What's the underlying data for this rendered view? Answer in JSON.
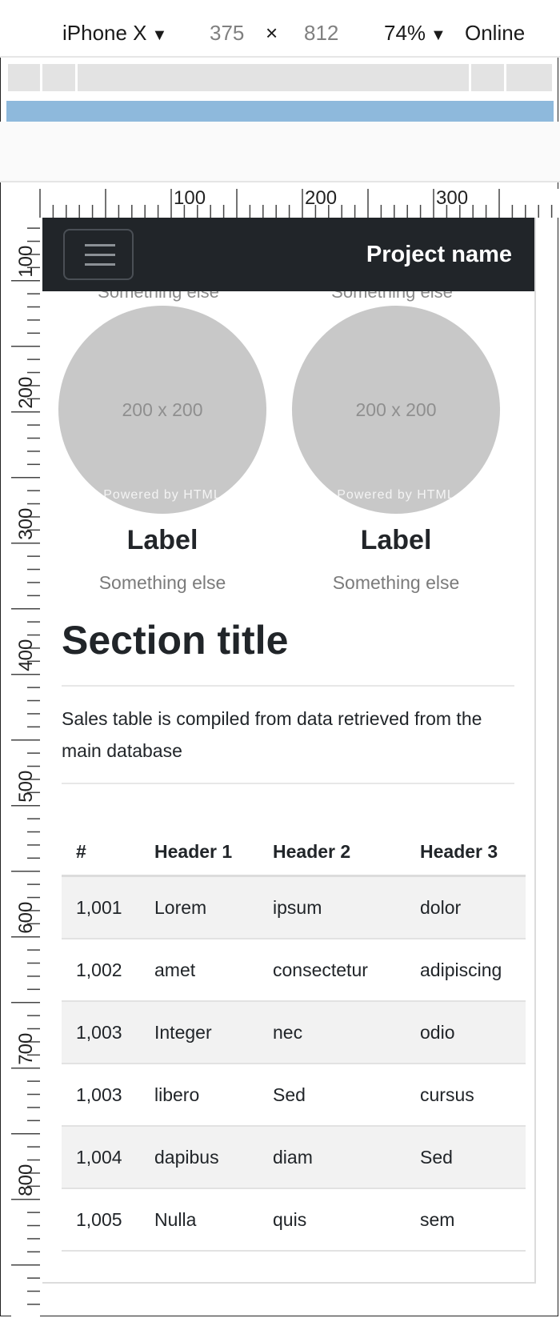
{
  "device_toolbar": {
    "device": "iPhone X",
    "width": "375",
    "separator": "×",
    "height": "812",
    "zoom": "74%",
    "throttling": "Online",
    "caret": "▼"
  },
  "ruler": {
    "horizontal_labels": [
      "100",
      "200",
      "300"
    ],
    "vertical_labels": [
      "100",
      "200",
      "300",
      "400",
      "500",
      "600",
      "700",
      "800"
    ]
  },
  "navbar": {
    "brand": "Project name",
    "toggler_icon": "hamburger-icon"
  },
  "thumbnails": [
    {
      "placeholder": "200 x 200",
      "watermark": "Powered by HTML",
      "label": "Label",
      "caption": "Something else",
      "clipped_caption": "Something else"
    },
    {
      "placeholder": "200 x 200",
      "watermark": "Powered by HTML",
      "label": "Label",
      "caption": "Something else",
      "clipped_caption": "Something else"
    }
  ],
  "section": {
    "title": "Section title",
    "lead": "Sales table is compiled from data retrieved from the main database"
  },
  "table": {
    "headers": [
      "#",
      "Header 1",
      "Header 2",
      "Header 3"
    ],
    "rows": [
      [
        "1,001",
        "Lorem",
        "ipsum",
        "dolor"
      ],
      [
        "1,002",
        "amet",
        "consectetur",
        "adipiscing"
      ],
      [
        "1,003",
        "Integer",
        "nec",
        "odio"
      ],
      [
        "1,003",
        "libero",
        "Sed",
        "cursus"
      ],
      [
        "1,004",
        "dapibus",
        "diam",
        "Sed"
      ],
      [
        "1,005",
        "Nulla",
        "quis",
        "sem"
      ]
    ]
  },
  "colors": {
    "navbar_bg": "#212529",
    "media_query_bar": "#8eb9dc",
    "placeholder_circle": "#c8c8c8",
    "striped_row": "#f2f2f2"
  }
}
